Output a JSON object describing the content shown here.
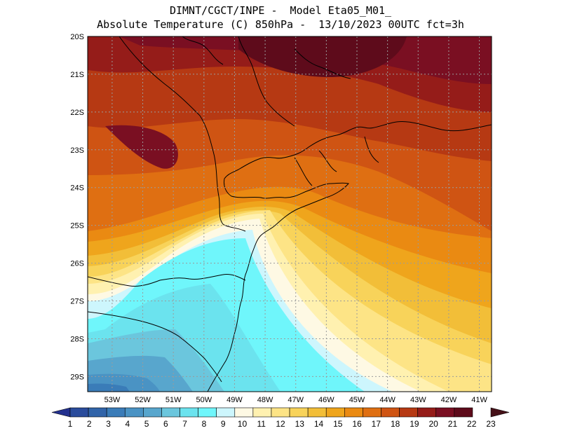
{
  "title": {
    "line1": "DIMNT/CGCT/INPE -  Model Eta05_M01_",
    "line2": "Absolute Temperature (C) 850hPa -  13/10/2023 00UTC fct=3h"
  },
  "map": {
    "lon_range": [
      -53.8,
      -40.6
    ],
    "lat_range": [
      -29.4,
      -20.0
    ],
    "lon_ticks": [
      "53W",
      "52W",
      "51W",
      "50W",
      "49W",
      "48W",
      "47W",
      "46W",
      "45W",
      "44W",
      "43W",
      "42W",
      "41W"
    ],
    "lat_ticks": [
      "20S",
      "21S",
      "22S",
      "23S",
      "24S",
      "25S",
      "26S",
      "27S",
      "28S",
      "29S"
    ]
  },
  "colorbar": {
    "labels": [
      "1",
      "2",
      "3",
      "4",
      "5",
      "6",
      "7",
      "8",
      "9",
      "10",
      "11",
      "12",
      "13",
      "14",
      "15",
      "16",
      "17",
      "18",
      "19",
      "20",
      "21",
      "22",
      "23"
    ],
    "colors": [
      "#23318f",
      "#2a4c9c",
      "#3164a9",
      "#3a7cb8",
      "#4a93c4",
      "#58a6cd",
      "#6bc6dd",
      "#6be3ee",
      "#6ff6fb",
      "#cdf6fd",
      "#fef9e4",
      "#fff1b0",
      "#fde486",
      "#f8d35a",
      "#f2be38",
      "#efa51c",
      "#ea8a12",
      "#df6f12",
      "#cf5413",
      "#b63913",
      "#951c19",
      "#7a0f22",
      "#5e0b1b",
      "#451018"
    ]
  },
  "colors": {
    "coast": "#000000",
    "grid": "#9b9b9b"
  }
}
